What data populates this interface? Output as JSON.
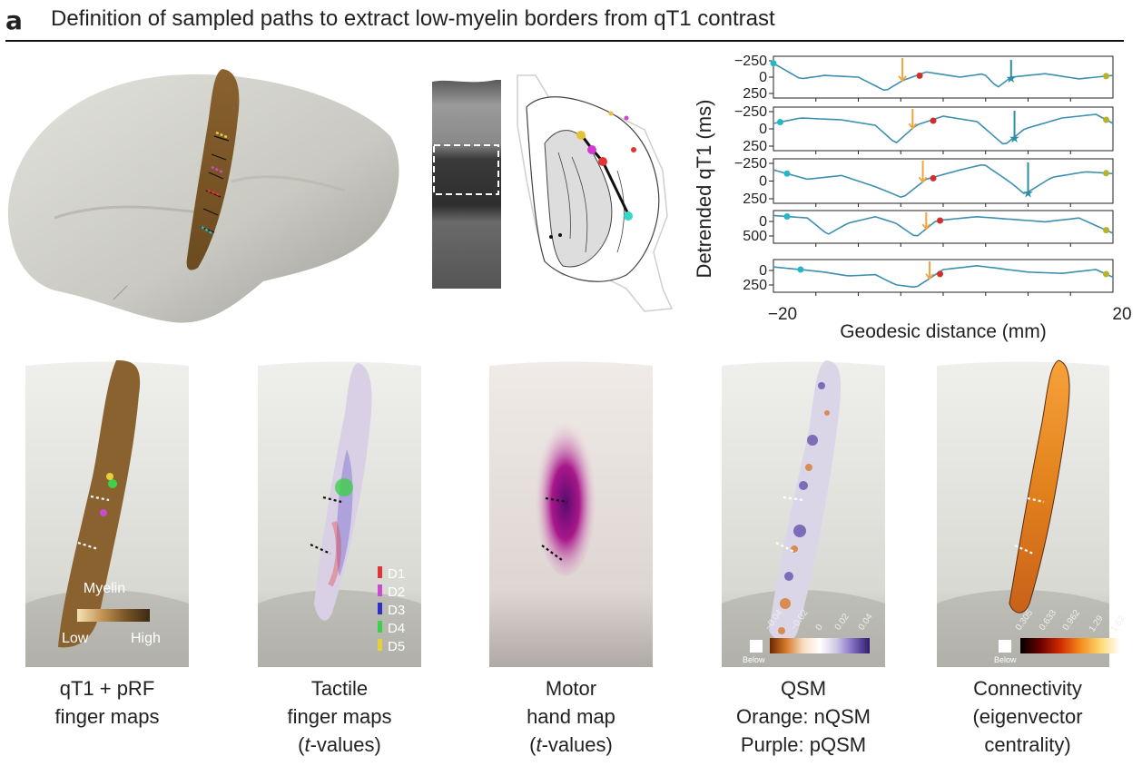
{
  "panel_letter": "a",
  "title": "Definition of sampled paths to extract low-myelin borders from qT1 contrast",
  "profiles": {
    "ylabel": "Detrended qT1 (ms)",
    "xlabel": "Geodesic distance (mm)",
    "x_ticks": [
      "−20",
      "20"
    ],
    "rows": [
      {
        "ticks": [
          "−250",
          "0",
          "250"
        ]
      },
      {
        "ticks": [
          "−250",
          "0",
          "250"
        ]
      },
      {
        "ticks": [
          "−250",
          "0",
          "250"
        ]
      },
      {
        "ticks": [
          "0",
          "500"
        ]
      },
      {
        "ticks": [
          "0",
          "250"
        ]
      }
    ],
    "colors": {
      "line": "#3d8fb0",
      "teal": "#25b7c3",
      "orange": "#f1a33c",
      "red": "#d42d2d",
      "olive": "#b8b22a",
      "star": "#2a8fa0"
    }
  },
  "legend_myelin": {
    "title": "Myelin",
    "low": "Low",
    "high": "High"
  },
  "legend_digits": [
    "D1",
    "D2",
    "D3",
    "D4",
    "D5"
  ],
  "digit_colors": [
    "#e23434",
    "#c84ccc",
    "#2f2fc4",
    "#3fd04a",
    "#e6d03a"
  ],
  "qsm_scale": {
    "below": "Below",
    "ticks": [
      "−0.04",
      "−0.02",
      "0",
      "0.02",
      "0.04"
    ]
  },
  "conn_scale": {
    "below": "Below",
    "ticks": [
      "0.305",
      "0.633",
      "0.962",
      "1.29",
      "1.62"
    ]
  },
  "captions": [
    {
      "lines": [
        "qT1 + pRF",
        "finger maps"
      ]
    },
    {
      "lines": [
        "Tactile",
        "finger maps"
      ],
      "tv": "t",
      "tv_suffix": "-values)"
    },
    {
      "lines": [
        "Motor",
        "hand map"
      ],
      "tv": "t",
      "tv_suffix": "-values)"
    },
    {
      "lines": [
        "QSM",
        "Orange: nQSM",
        "Purple: pQSM"
      ]
    },
    {
      "lines": [
        "Connectivity",
        "(eigenvector",
        "centrality)"
      ]
    }
  ]
}
